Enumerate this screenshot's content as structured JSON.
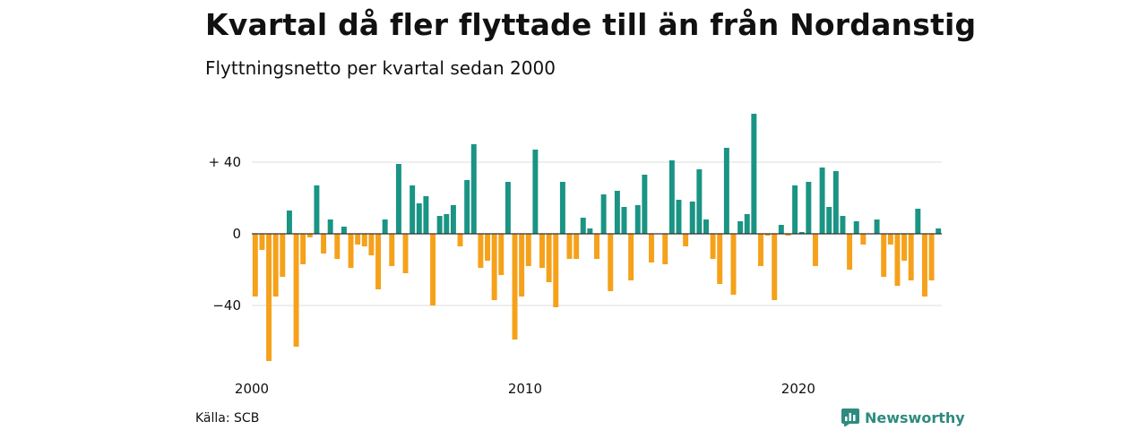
{
  "header": {
    "title": "Kvartal då fler flyttade till än från Nordanstig",
    "subtitle": "Flyttningsnetto per kvartal sedan 2000"
  },
  "footer": {
    "source": "Källa: SCB",
    "brand": "Newsworthy"
  },
  "colors": {
    "positive": "#1a9484",
    "negative": "#f5a11a",
    "grid": "#dddddd",
    "brand": "#2e8b7f"
  },
  "chart_data": {
    "type": "bar",
    "title": "Kvartal då fler flyttade till än från Nordanstig",
    "subtitle": "Flyttningsnetto per kvartal sedan 2000",
    "start": "2000 Q1",
    "ylim": [
      -72,
      68
    ],
    "yticks": [
      {
        "value": 40,
        "label": "+ 40"
      },
      {
        "value": 0,
        "label": "0"
      },
      {
        "value": -40,
        "label": "−40"
      }
    ],
    "xticks": [
      {
        "index": 0,
        "label": "2000"
      },
      {
        "index": 40,
        "label": "2010"
      },
      {
        "index": 80,
        "label": "2020"
      }
    ],
    "grid": true,
    "values": [
      -35,
      -9,
      -71,
      -35,
      -24,
      13,
      -63,
      -17,
      -2,
      27,
      -11,
      8,
      -14,
      4,
      -19,
      -6,
      -7,
      -12,
      -31,
      8,
      -18,
      39,
      -22,
      27,
      17,
      21,
      -40,
      10,
      11,
      16,
      -7,
      30,
      50,
      -19,
      -15,
      -37,
      -23,
      29,
      -59,
      -35,
      -18,
      47,
      -19,
      -27,
      -41,
      29,
      -14,
      -14,
      9,
      3,
      -14,
      22,
      -32,
      24,
      15,
      -26,
      16,
      33,
      -16,
      0,
      -17,
      41,
      19,
      -7,
      18,
      36,
      8,
      -14,
      -28,
      48,
      -34,
      7,
      11,
      67,
      -18,
      -1,
      -37,
      5,
      -1,
      27,
      1,
      29,
      -18,
      37,
      15,
      35,
      10,
      -20,
      7,
      -6,
      0,
      8,
      -24,
      -6,
      -29,
      -15,
      -26,
      14,
      -35,
      -26,
      3
    ]
  }
}
